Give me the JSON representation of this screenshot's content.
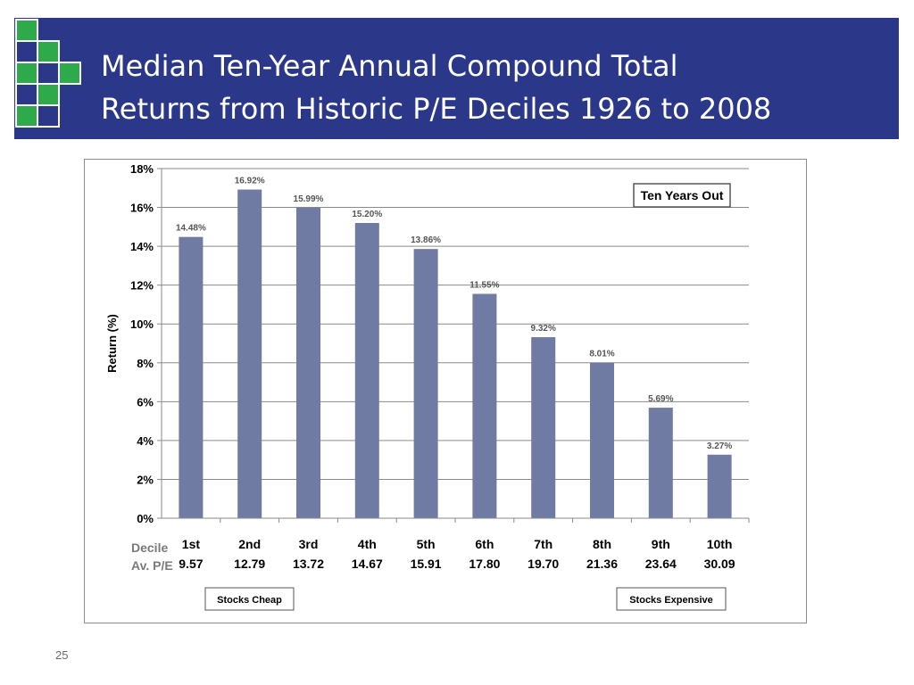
{
  "slide": {
    "title_line1": "Median Ten-Year Annual Compound Total",
    "title_line2": "Returns from Historic P/E Deciles 1926 to 2008",
    "page_number": "25"
  },
  "colors": {
    "title_bg": "#2b388a",
    "bar": "#6f7ba3",
    "logo_green": "#2eaa4a",
    "logo_blue": "#2b388a"
  },
  "chart_data": {
    "type": "bar",
    "ylabel": "Return (%)",
    "ylim": [
      0,
      18
    ],
    "yticks": [
      0,
      2,
      4,
      6,
      8,
      10,
      12,
      14,
      16,
      18
    ],
    "ytick_labels": [
      "0%",
      "2%",
      "4%",
      "6%",
      "8%",
      "10%",
      "12%",
      "14%",
      "16%",
      "18%"
    ],
    "grid": true,
    "categories": [
      "1st",
      "2nd",
      "3rd",
      "4th",
      "5th",
      "6th",
      "7th",
      "8th",
      "9th",
      "10th"
    ],
    "pe_values": [
      "9.57",
      "12.79",
      "13.72",
      "14.67",
      "15.91",
      "17.80",
      "19.70",
      "21.36",
      "23.64",
      "30.09"
    ],
    "values": [
      14.48,
      16.92,
      15.99,
      15.2,
      13.86,
      11.55,
      9.32,
      8.01,
      5.69,
      3.27
    ],
    "data_labels": [
      "14.48%",
      "16.92%",
      "15.99%",
      "15.20%",
      "13.86%",
      "11.55%",
      "9.32%",
      "8.01%",
      "5.69%",
      "3.27%"
    ],
    "row_label_decile": "Decile",
    "row_label_pe": "Av. P/E",
    "annotation_box": "Ten Years Out",
    "note_left": "Stocks Cheap",
    "note_right": "Stocks Expensive"
  }
}
